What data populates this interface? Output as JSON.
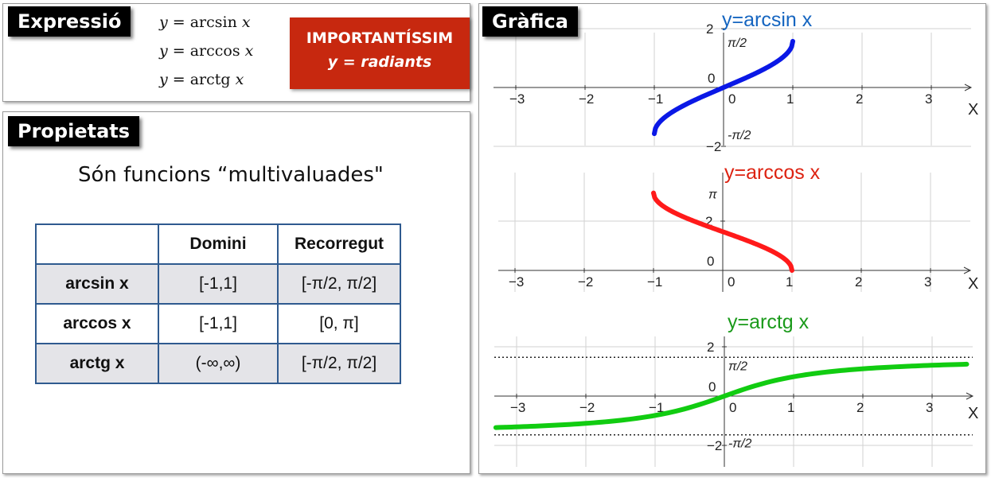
{
  "expressio": {
    "tag": "Expressió",
    "formulas": [
      {
        "y": "y",
        "eq": " = ",
        "fn": "arcsin",
        "x": "x"
      },
      {
        "y": "y",
        "eq": " = ",
        "fn": "arccos",
        "x": "x"
      },
      {
        "y": "y",
        "eq": " = ",
        "fn": "arctg",
        "x": "x"
      }
    ],
    "alert_line1": "IMPORTANTÍSSIM",
    "alert_line2": "y = radiants",
    "alert_color": "#c7280f"
  },
  "propietats": {
    "tag": "Propietats",
    "subtitle": "Són funcions “multivaluades\"",
    "table": {
      "headers": [
        "",
        "Domini",
        "Recorregut"
      ],
      "rows": [
        [
          "arcsin x",
          "[-1,1]",
          "[-π/2, π/2]"
        ],
        [
          "arccos x",
          "[-1,1]",
          "[0, π]"
        ],
        [
          "arctg x",
          "(-∞,∞)",
          "[-π/2, π/2]"
        ]
      ]
    },
    "border_color": "#2f5a8f"
  },
  "grafica": {
    "tag": "Gràfica",
    "x_ticks": [
      "−3",
      "−2",
      "−1",
      "0",
      "1",
      "2",
      "3"
    ],
    "x_axis_label": "X",
    "plots": [
      {
        "title": "y=arcsin x",
        "color": "#0a18e6",
        "title_color": "#1565c0",
        "y_ticks": [
          "2",
          "−2"
        ],
        "origin_label": "0",
        "pi_labels": [
          "π/2",
          "-π/2"
        ]
      },
      {
        "title": "y=arccos x",
        "color": "#ff1a1a",
        "title_color": "#dd2211",
        "y_ticks": [
          "2"
        ],
        "origin_label": "0",
        "pi_labels": [
          "π"
        ]
      },
      {
        "title": "y=arctg x",
        "color": "#11cc11",
        "title_color": "#1a9a1a",
        "y_ticks": [
          "2",
          "−2"
        ],
        "origin_label": "0",
        "pi_labels": [
          "π/2",
          "-π/2"
        ]
      }
    ]
  },
  "chart_data": [
    {
      "type": "line",
      "title": "y=arcsin x",
      "xlabel": "X",
      "xlim": [
        -3.3,
        3.5
      ],
      "ylim": [
        -2.3,
        2.3
      ],
      "series": [
        {
          "x": [
            -1,
            -0.9,
            -0.75,
            -0.5,
            -0.25,
            0,
            0.25,
            0.5,
            0.75,
            0.9,
            1
          ],
          "y": [
            -1.571,
            -1.12,
            -0.848,
            -0.524,
            -0.253,
            0,
            0.253,
            0.524,
            0.848,
            1.12,
            1.571
          ]
        }
      ]
    },
    {
      "type": "line",
      "title": "y=arccos x",
      "xlabel": "X",
      "xlim": [
        -3.3,
        3.5
      ],
      "ylim": [
        -0.3,
        3.4
      ],
      "series": [
        {
          "x": [
            -1,
            -0.9,
            -0.75,
            -0.5,
            -0.25,
            0,
            0.25,
            0.5,
            0.75,
            0.9,
            1
          ],
          "y": [
            3.142,
            2.691,
            2.419,
            2.094,
            1.823,
            1.571,
            1.318,
            1.047,
            0.723,
            0.451,
            0
          ]
        }
      ]
    },
    {
      "type": "line",
      "title": "y=arctg x",
      "xlabel": "X",
      "xlim": [
        -3.3,
        3.5
      ],
      "ylim": [
        -2.3,
        2.3
      ],
      "series": [
        {
          "x": [
            -3.3,
            -3,
            -2,
            -1,
            -0.5,
            0,
            0.5,
            1,
            2,
            3,
            3.5
          ],
          "y": [
            -1.277,
            -1.249,
            -1.107,
            -0.785,
            -0.464,
            0,
            0.464,
            0.785,
            1.107,
            1.249,
            1.292
          ]
        }
      ]
    }
  ]
}
